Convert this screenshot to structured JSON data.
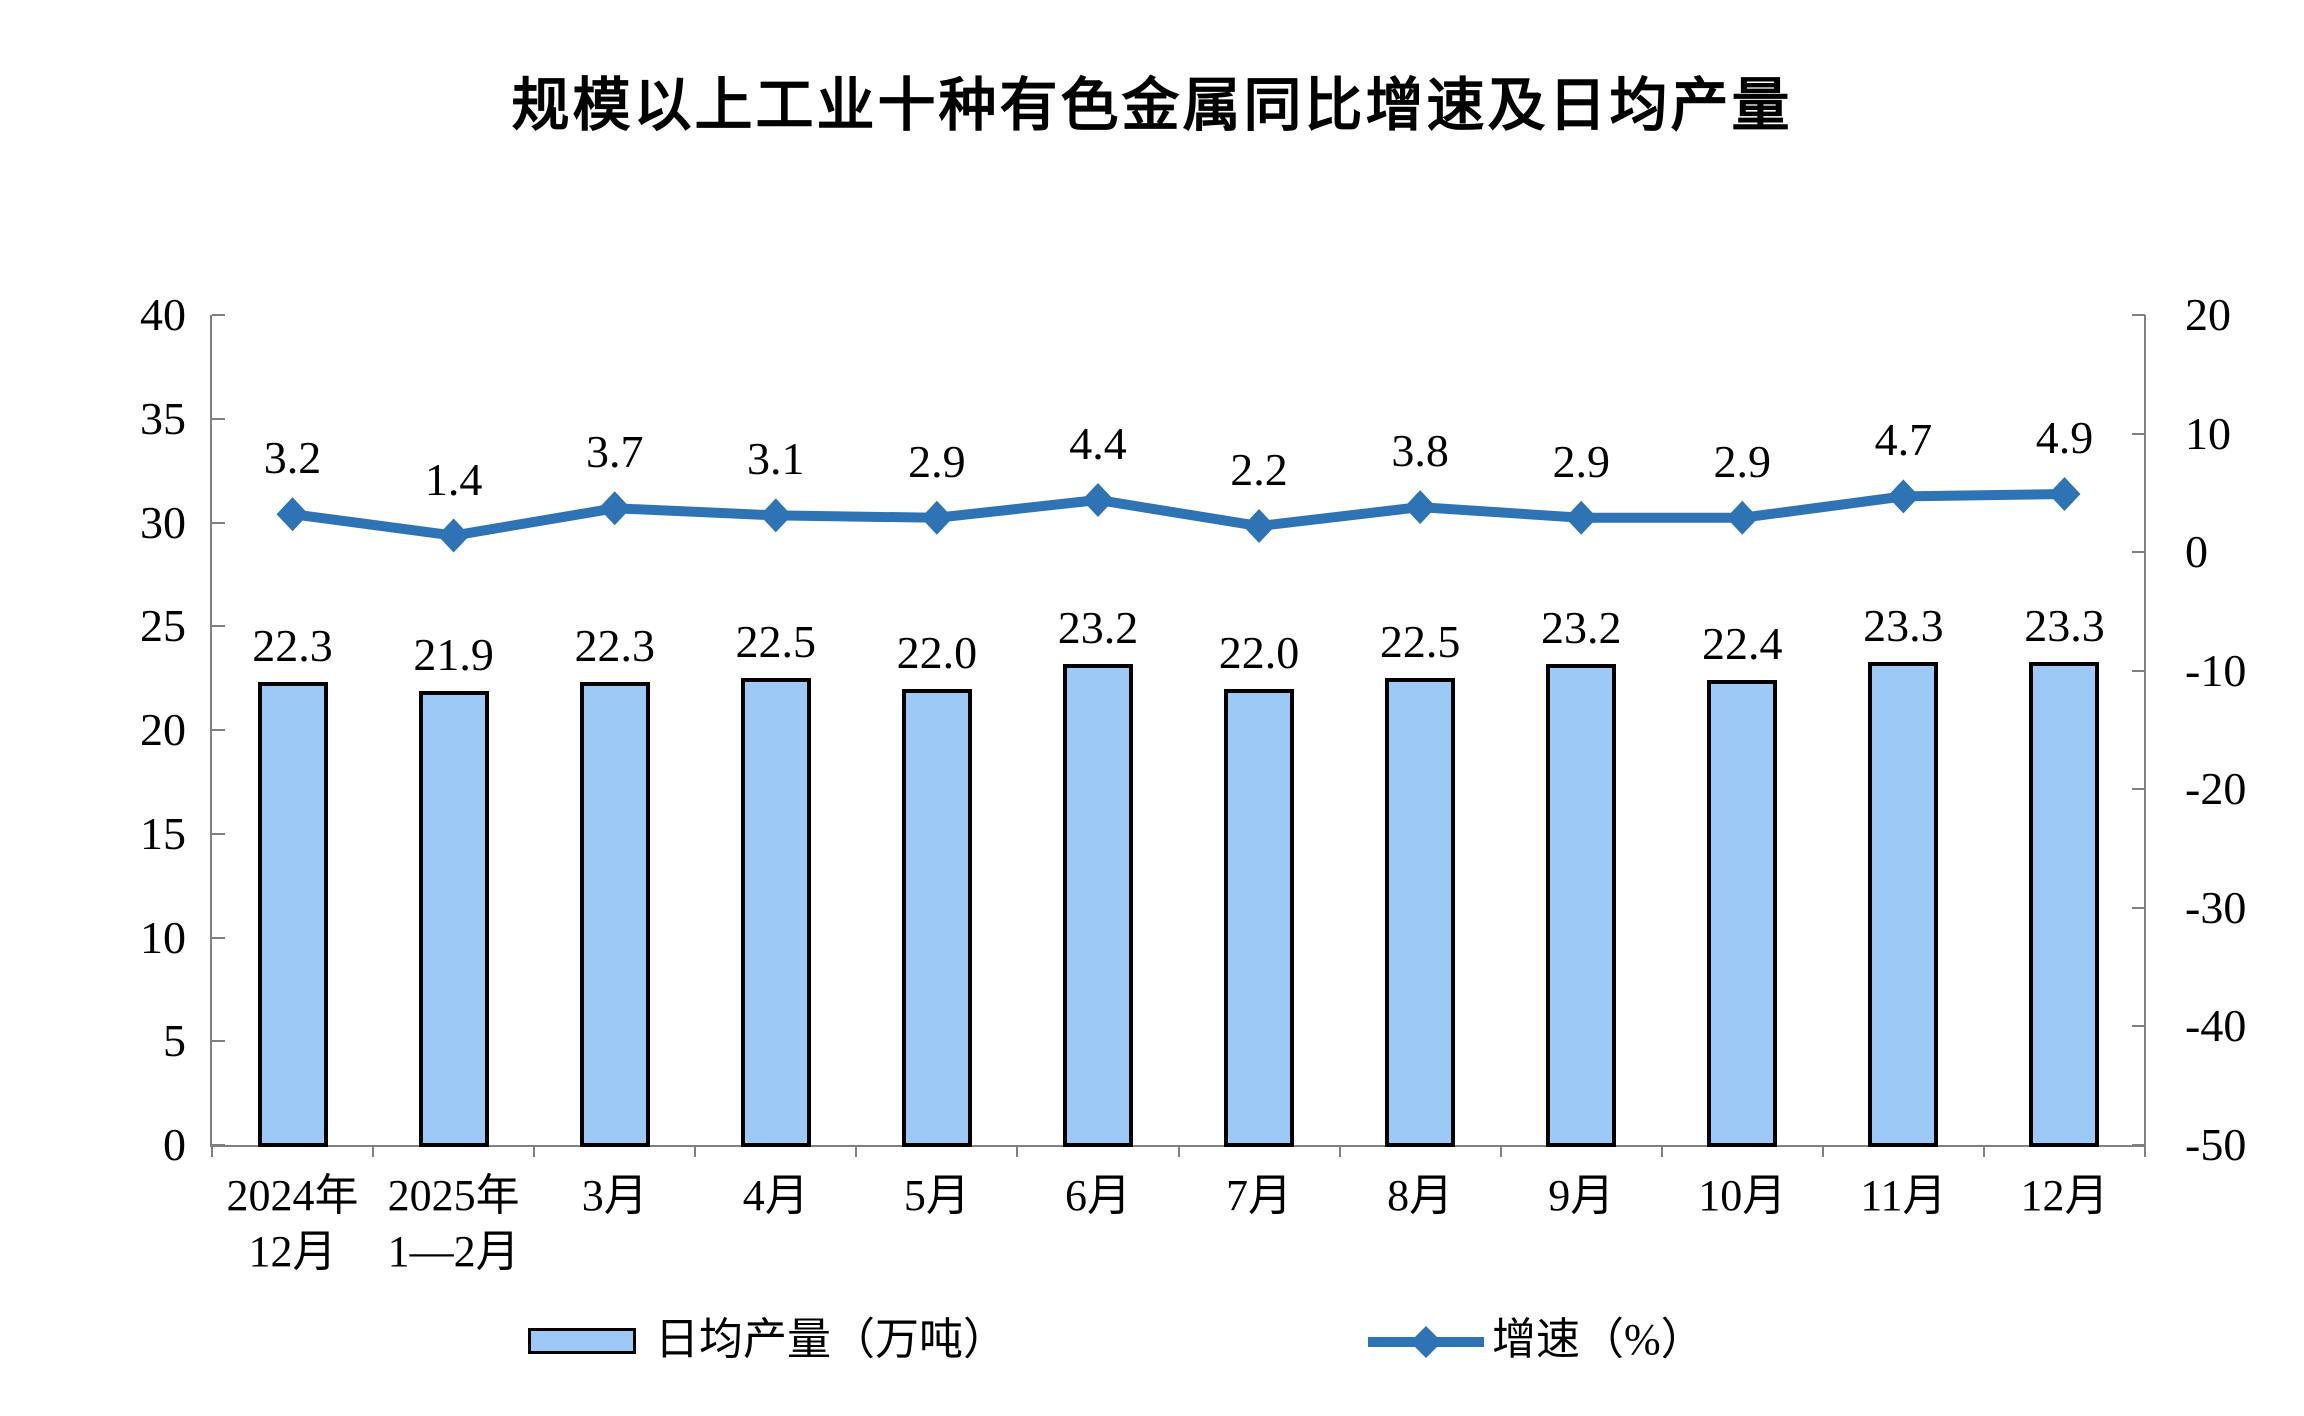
{
  "title": "规模以上工业十种有色金属同比增速及日均产量",
  "legend": {
    "bars_label": "日均产量（万吨）",
    "line_label": "增速（%）"
  },
  "colors": {
    "bar_fill": "#9DC9F7",
    "bar_border": "#000000",
    "line": "#2E74B5",
    "axis": "#808080",
    "text": "#000000"
  },
  "chart_data": {
    "type": "bar+line",
    "title": "规模以上工业十种有色金属同比增速及日均产量",
    "categories": [
      [
        "2024年",
        "12月"
      ],
      [
        "2025年",
        "1—2月"
      ],
      [
        "3月"
      ],
      [
        "4月"
      ],
      [
        "5月"
      ],
      [
        "6月"
      ],
      [
        "7月"
      ],
      [
        "8月"
      ],
      [
        "9月"
      ],
      [
        "10月"
      ],
      [
        "11月"
      ],
      [
        "12月"
      ]
    ],
    "series": [
      {
        "name": "日均产量（万吨）",
        "type": "bar",
        "axis": "left",
        "values": [
          22.3,
          21.9,
          22.3,
          22.5,
          22.0,
          23.2,
          22.0,
          22.5,
          23.2,
          22.4,
          23.3,
          23.3
        ],
        "labels": [
          "22.3",
          "21.9",
          "22.3",
          "22.5",
          "22.0",
          "23.2",
          "22.0",
          "22.5",
          "23.2",
          "22.4",
          "23.3",
          "23.3"
        ]
      },
      {
        "name": "增速（%）",
        "type": "line",
        "axis": "right",
        "values": [
          3.2,
          1.4,
          3.7,
          3.1,
          2.9,
          4.4,
          2.2,
          3.8,
          2.9,
          2.9,
          4.7,
          4.9
        ],
        "labels": [
          "3.2",
          "1.4",
          "3.7",
          "3.1",
          "2.9",
          "4.4",
          "2.2",
          "3.8",
          "2.9",
          "2.9",
          "4.7",
          "4.9"
        ]
      }
    ],
    "left_axis": {
      "min": 0,
      "max": 40,
      "step": 5,
      "ticks": [
        40,
        35,
        30,
        25,
        20,
        15,
        10,
        5,
        0
      ]
    },
    "right_axis": {
      "min": -50,
      "max": 20,
      "step": 10,
      "ticks": [
        20,
        10,
        0,
        -10,
        -20,
        -30,
        -40,
        -50
      ]
    },
    "grid": false,
    "legend_position": "bottom"
  }
}
